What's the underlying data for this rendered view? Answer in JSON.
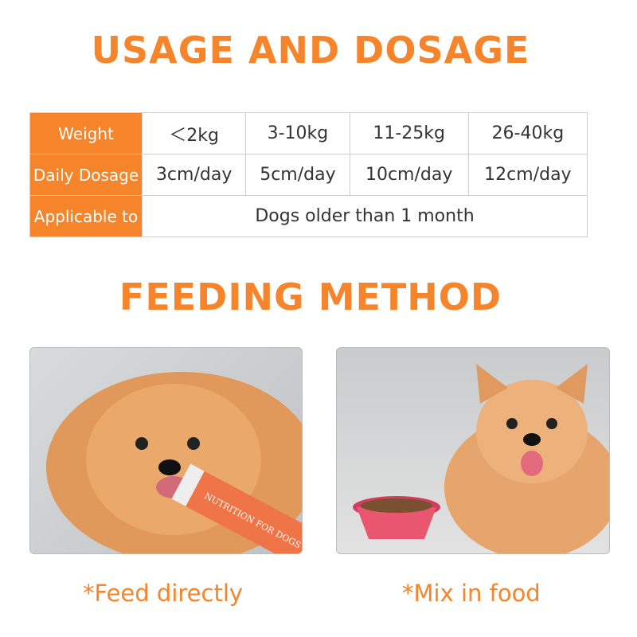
{
  "title1": "USAGE AND DOSAGE",
  "table": {
    "rows": [
      {
        "header": "Weight",
        "cells": [
          "＜2kg",
          "3-10kg",
          "11-25kg",
          "26-40kg"
        ]
      },
      {
        "header": "Daily Dosage",
        "cells": [
          "3cm/day",
          "5cm/day",
          "10cm/day",
          "12cm/day"
        ]
      },
      {
        "header": "Applicable to",
        "span": "Dogs older than 1 month"
      }
    ]
  },
  "title2": "FEEDING METHOD",
  "photos": [
    {
      "caption": "*Feed directly",
      "product_text": "NUTRITION FOR DOGS"
    },
    {
      "caption": "*Mix in food"
    }
  ],
  "colors": {
    "accent": "#f5842a",
    "border": "#cfcfcf"
  }
}
